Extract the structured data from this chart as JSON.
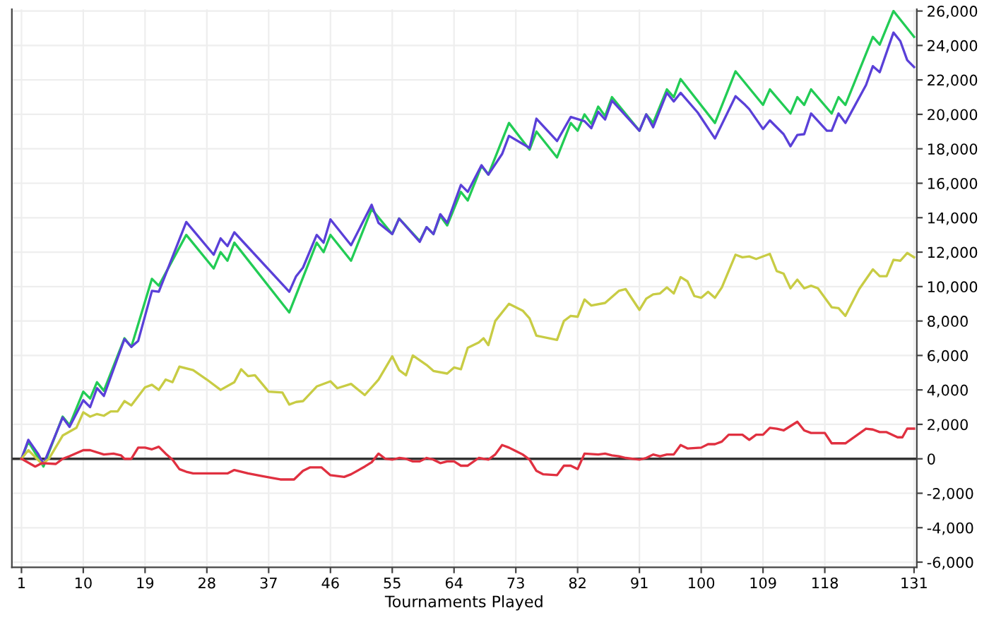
{
  "chart_data": {
    "type": "line",
    "xlabel": "Tournaments Played",
    "xlim": [
      -0.4,
      131.4
    ],
    "ylim": [
      -6300,
      26100
    ],
    "xticks": [
      1,
      10,
      19,
      28,
      37,
      46,
      55,
      64,
      73,
      82,
      91,
      100,
      109,
      118,
      131
    ],
    "yticks": [
      {
        "value": -6000,
        "label": "-6,000"
      },
      {
        "value": -4000,
        "label": "-4,000"
      },
      {
        "value": -2000,
        "label": "-2,000"
      },
      0,
      {
        "value": 2000,
        "label": "2,000"
      },
      {
        "value": 4000,
        "label": "4,000"
      },
      {
        "value": 6000,
        "label": "6,000"
      },
      {
        "value": 8000,
        "label": "8,000"
      },
      {
        "value": 10000,
        "label": "10,000"
      },
      {
        "value": 12000,
        "label": "12,000"
      },
      {
        "value": 14000,
        "label": "14,000"
      },
      {
        "value": 16000,
        "label": "16,000"
      },
      {
        "value": 18000,
        "label": "18,000"
      },
      {
        "value": 20000,
        "label": "20,000"
      },
      {
        "value": 22000,
        "label": "22,000"
      },
      {
        "value": 24000,
        "label": "24,000"
      },
      {
        "value": 26000,
        "label": "26,000"
      }
    ],
    "grid": true,
    "legend": false,
    "marker": "none",
    "line_style": "solid",
    "ref_lines": [
      {
        "axis": "y",
        "value": 0,
        "color": "#333333",
        "line_style": "solid"
      }
    ],
    "series": [
      {
        "color": "#22cc55",
        "x": [
          1,
          2,
          4.2,
          7,
          8,
          10,
          11,
          12,
          13,
          16,
          17,
          20,
          21,
          25,
          29,
          30,
          31,
          32,
          40,
          44,
          45,
          46,
          49,
          52,
          55,
          56,
          59,
          60,
          61,
          62,
          63,
          65,
          66,
          68,
          69,
          72,
          75,
          76,
          79,
          81,
          82,
          83,
          84,
          85,
          86,
          87,
          91,
          92,
          93,
          95,
          96,
          97,
          102,
          105,
          109,
          110,
          113,
          114,
          115,
          116,
          119,
          120,
          121,
          125,
          126,
          128,
          131
        ],
        "values": [
          0,
          1000,
          -450,
          2450,
          1950,
          3900,
          3500,
          4450,
          3950,
          7000,
          6500,
          10450,
          10050,
          13000,
          11050,
          12000,
          11500,
          12550,
          8500,
          12550,
          12000,
          13000,
          11500,
          14500,
          13050,
          13950,
          12650,
          13450,
          13050,
          14100,
          13550,
          15500,
          15000,
          17000,
          16500,
          19500,
          17950,
          19000,
          17500,
          19500,
          19050,
          20000,
          19450,
          20450,
          19900,
          21000,
          19050,
          20000,
          19500,
          21450,
          21000,
          22050,
          19500,
          22500,
          20550,
          21450,
          20050,
          21000,
          20550,
          21450,
          20050,
          21000,
          20550,
          24500,
          24050,
          26000,
          24500
        ]
      },
      {
        "color": "#5a40d8",
        "x": [
          1,
          2,
          3.4,
          4.2,
          7,
          8,
          10,
          11,
          12,
          13,
          16,
          17,
          18,
          20,
          21,
          25,
          29,
          30,
          31,
          32,
          40,
          41,
          42,
          44,
          45,
          46,
          49,
          52,
          53,
          55,
          56,
          59,
          60,
          61,
          62,
          63,
          65,
          66,
          68,
          69,
          71,
          72,
          75,
          76,
          79,
          81,
          83,
          84,
          85,
          86,
          87,
          91,
          92,
          93,
          95,
          96,
          97,
          99.5,
          102,
          105,
          106.4,
          107,
          109,
          110,
          112,
          113,
          114,
          115,
          116,
          118.3,
          119,
          120,
          121,
          124,
          125,
          126,
          128,
          129,
          130,
          131
        ],
        "values": [
          0,
          1100,
          300,
          -300,
          2400,
          1850,
          3400,
          3000,
          4100,
          3650,
          6950,
          6500,
          6850,
          9750,
          9700,
          13750,
          11850,
          12800,
          12350,
          13150,
          9700,
          10600,
          11100,
          13000,
          12550,
          13900,
          12400,
          14750,
          13700,
          13050,
          13950,
          12600,
          13450,
          13050,
          14200,
          13700,
          15900,
          15500,
          17050,
          16500,
          17700,
          18750,
          18050,
          19750,
          18450,
          19850,
          19600,
          19200,
          20150,
          19700,
          20800,
          19050,
          20000,
          19250,
          21250,
          20750,
          21250,
          20100,
          18600,
          21050,
          20550,
          20300,
          19150,
          19650,
          18850,
          18150,
          18800,
          18850,
          20050,
          19050,
          19050,
          20050,
          19500,
          21700,
          22800,
          22450,
          24750,
          24250,
          23150,
          22750
        ]
      },
      {
        "color": "#c8cc44",
        "x": [
          1,
          2,
          4,
          5,
          7,
          9,
          10,
          11,
          12,
          13,
          14,
          15,
          16,
          17,
          19,
          20,
          21,
          22,
          23,
          24,
          26,
          28,
          30,
          32,
          33,
          34,
          35,
          37,
          39,
          40,
          41,
          42,
          44,
          46,
          47,
          49,
          51,
          53,
          55,
          56,
          57,
          58,
          60,
          61,
          63,
          64,
          65,
          66,
          67.6,
          68.3,
          69,
          70,
          72,
          74,
          75,
          76,
          79,
          80,
          81,
          82,
          83,
          84,
          86,
          88,
          89,
          91,
          92,
          93,
          94,
          95,
          96,
          97,
          98,
          99,
          100,
          101,
          102,
          103,
          105,
          106,
          107,
          108,
          110,
          111,
          112,
          113,
          114,
          115,
          116,
          117,
          119,
          120,
          121,
          123,
          125,
          126,
          127,
          128,
          129,
          130,
          131
        ],
        "values": [
          0,
          500,
          -300,
          0,
          1350,
          1800,
          2700,
          2450,
          2600,
          2500,
          2750,
          2750,
          3350,
          3100,
          4150,
          4300,
          4000,
          4600,
          4450,
          5350,
          5150,
          4600,
          4000,
          4450,
          5200,
          4800,
          4850,
          3900,
          3850,
          3150,
          3300,
          3350,
          4200,
          4500,
          4100,
          4350,
          3700,
          4600,
          5950,
          5150,
          4850,
          6000,
          5450,
          5100,
          4950,
          5300,
          5200,
          6450,
          6750,
          7000,
          6600,
          8000,
          9000,
          8600,
          8150,
          7150,
          6900,
          8000,
          8300,
          8250,
          9250,
          8900,
          9050,
          9750,
          9850,
          8650,
          9300,
          9550,
          9600,
          9950,
          9600,
          10550,
          10300,
          9450,
          9350,
          9700,
          9350,
          9950,
          11850,
          11700,
          11750,
          11600,
          11900,
          10900,
          10750,
          9900,
          10400,
          9900,
          10050,
          9900,
          8800,
          8750,
          8300,
          9850,
          11000,
          10600,
          10600,
          11550,
          11500,
          11950,
          11700
        ]
      },
      {
        "color": "#e03040",
        "x": [
          1,
          3,
          4,
          6,
          7,
          8,
          10,
          11,
          13,
          14.4,
          15.5,
          16,
          17,
          18,
          19,
          20,
          21,
          22,
          23,
          24,
          25,
          26,
          31,
          32,
          34,
          36,
          37.4,
          38.7,
          40.7,
          42,
          43,
          44.7,
          46,
          48,
          49,
          51,
          52,
          53,
          54,
          55,
          56,
          57,
          58,
          59,
          60,
          61,
          62,
          63,
          64,
          65,
          66,
          67.6,
          69,
          70,
          71,
          72,
          73,
          74,
          75,
          76,
          77,
          79,
          80,
          81,
          82,
          83,
          85,
          86,
          87,
          88,
          89,
          91,
          92,
          93,
          94,
          95,
          96,
          97,
          98,
          100,
          101,
          102,
          103,
          104,
          106,
          107,
          108,
          109,
          110,
          111,
          112,
          114,
          115,
          116,
          118,
          119,
          121,
          124,
          125,
          126,
          127,
          128.6,
          129.3,
          130,
          131
        ],
        "values": [
          0,
          -450,
          -250,
          -300,
          0,
          150,
          500,
          500,
          250,
          300,
          200,
          0,
          0,
          650,
          650,
          550,
          700,
          300,
          -50,
          -600,
          -750,
          -850,
          -850,
          -650,
          -850,
          -1000,
          -1100,
          -1200,
          -1200,
          -700,
          -500,
          -500,
          -950,
          -1050,
          -900,
          -450,
          -200,
          300,
          0,
          -50,
          50,
          0,
          -150,
          -150,
          50,
          -50,
          -250,
          -150,
          -150,
          -400,
          -400,
          50,
          -50,
          250,
          800,
          650,
          450,
          250,
          -50,
          -700,
          -900,
          -950,
          -400,
          -400,
          -600,
          300,
          250,
          300,
          200,
          150,
          50,
          -50,
          50,
          250,
          150,
          250,
          250,
          800,
          600,
          650,
          850,
          850,
          1000,
          1400,
          1400,
          1100,
          1400,
          1400,
          1800,
          1750,
          1650,
          2150,
          1650,
          1500,
          1500,
          900,
          900,
          1750,
          1700,
          1550,
          1550,
          1250,
          1250,
          1750,
          1750
        ]
      }
    ]
  }
}
